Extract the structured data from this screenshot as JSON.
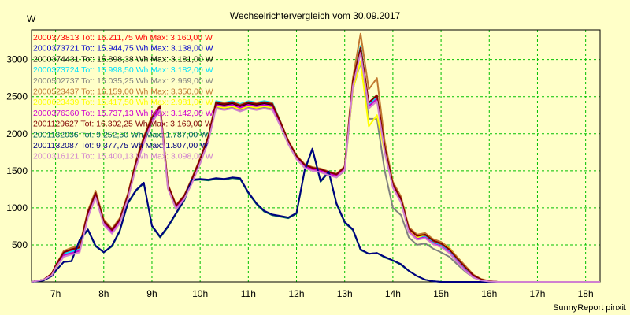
{
  "chart_data": {
    "type": "line",
    "title": "Wechselrichtervergleich vom 30.09.2017",
    "ylabel": "W",
    "footer": "SunnyReport pinxit",
    "ylim": [
      0,
      3400
    ],
    "xlim": [
      6.5,
      18.3
    ],
    "yticks": [
      500,
      1000,
      1500,
      2000,
      2500,
      3000
    ],
    "xticks": [
      7,
      8,
      9,
      10,
      11,
      12,
      13,
      14,
      15,
      16,
      17,
      18
    ],
    "xtick_labels": [
      "7h",
      "8h",
      "9h",
      "10h",
      "11h",
      "12h",
      "13h",
      "14h",
      "15h",
      "16h",
      "17h",
      "18h"
    ],
    "grid": true,
    "legend_position": "top-left",
    "x": [
      6.5,
      6.75,
      6.92,
      7.0,
      7.17,
      7.33,
      7.5,
      7.67,
      7.83,
      8.0,
      8.17,
      8.33,
      8.5,
      8.67,
      8.83,
      9.0,
      9.17,
      9.33,
      9.5,
      9.67,
      9.83,
      10.0,
      10.17,
      10.33,
      10.5,
      10.67,
      10.83,
      11.0,
      11.17,
      11.33,
      11.5,
      11.67,
      11.83,
      12.0,
      12.17,
      12.33,
      12.5,
      12.67,
      12.83,
      13.0,
      13.17,
      13.33,
      13.5,
      13.67,
      13.83,
      14.0,
      14.17,
      14.33,
      14.5,
      14.67,
      14.83,
      15.0,
      15.17,
      15.33,
      15.5,
      15.67,
      15.83,
      16.0,
      16.17,
      16.33,
      16.5,
      16.67,
      16.83,
      17.0,
      17.17,
      17.33,
      17.5,
      17.67,
      17.83,
      18.0,
      18.17,
      18.3
    ],
    "series": [
      {
        "name": "2000373813 Tot: 16.211,75 Wh Max: 3.160,00 W",
        "color": "#ff0000",
        "values": [
          0,
          30,
          100,
          200,
          380,
          420,
          450,
          920,
          1180,
          800,
          680,
          820,
          1150,
          1600,
          1920,
          2200,
          2360,
          1300,
          1020,
          1150,
          1380,
          1650,
          1950,
          2420,
          2400,
          2420,
          2380,
          2420,
          2400,
          2420,
          2400,
          2150,
          1900,
          1700,
          1580,
          1540,
          1520,
          1480,
          1450,
          1550,
          2700,
          3150,
          2400,
          2500,
          1800,
          1300,
          1100,
          700,
          600,
          620,
          540,
          500,
          420,
          300,
          180,
          80,
          30,
          10,
          0,
          0,
          0,
          0,
          0,
          0,
          0,
          0,
          0,
          0,
          0,
          0,
          0,
          0
        ]
      },
      {
        "name": "2000373721 Tot: 15.944,75 Wh Max: 3.138,00 W",
        "color": "#0000cc",
        "values": [
          0,
          30,
          100,
          200,
          380,
          400,
          430,
          900,
          1170,
          790,
          670,
          810,
          1140,
          1580,
          1900,
          2180,
          2340,
          1280,
          1000,
          1140,
          1360,
          1630,
          1930,
          2400,
          2390,
          2400,
          2360,
          2400,
          2390,
          2400,
          2390,
          2140,
          1890,
          1690,
          1570,
          1530,
          1510,
          1470,
          1440,
          1540,
          2680,
          3130,
          2380,
          2480,
          1780,
          1290,
          1090,
          690,
          590,
          610,
          530,
          490,
          410,
          290,
          170,
          70,
          25,
          8,
          0,
          0,
          0,
          0,
          0,
          0,
          0,
          0,
          0,
          0,
          0,
          0,
          0,
          0
        ]
      },
      {
        "name": "2000374431 Tot: 15.898,38 Wh Max: 3.181,00 W",
        "color": "#000000",
        "values": [
          0,
          30,
          100,
          200,
          370,
          400,
          430,
          900,
          1170,
          790,
          670,
          810,
          1140,
          1580,
          1900,
          2180,
          2350,
          1290,
          1010,
          1140,
          1360,
          1640,
          1940,
          2410,
          2390,
          2410,
          2370,
          2410,
          2390,
          2410,
          2390,
          2140,
          1890,
          1690,
          1570,
          1530,
          1510,
          1470,
          1440,
          1540,
          2690,
          3180,
          2390,
          2490,
          1790,
          1290,
          1090,
          690,
          590,
          610,
          530,
          490,
          410,
          290,
          170,
          70,
          25,
          8,
          0,
          0,
          0,
          0,
          0,
          0,
          0,
          0,
          0,
          0,
          0,
          0,
          0,
          0
        ]
      },
      {
        "name": "2000373724 Tot: 15.998,50 Wh Max: 3.182,00 W",
        "color": "#00e0ff",
        "values": [
          0,
          30,
          100,
          210,
          380,
          410,
          440,
          910,
          1180,
          800,
          680,
          820,
          1150,
          1590,
          1910,
          2190,
          2350,
          1290,
          1010,
          1150,
          1370,
          1650,
          1950,
          2440,
          2420,
          2440,
          2400,
          2440,
          2420,
          2440,
          2420,
          2160,
          1900,
          1700,
          1580,
          1540,
          1520,
          1480,
          1450,
          1550,
          2700,
          3180,
          2390,
          2490,
          1790,
          1290,
          1090,
          690,
          590,
          610,
          530,
          490,
          410,
          290,
          170,
          70,
          25,
          8,
          0,
          0,
          0,
          0,
          0,
          0,
          0,
          0,
          0,
          0,
          0,
          0,
          0,
          0
        ]
      },
      {
        "name": "2000502737 Tot: 15.035,25 Wh Max: 2.969,00 W",
        "color": "#808080",
        "values": [
          0,
          30,
          100,
          180,
          350,
          380,
          410,
          880,
          1150,
          780,
          660,
          800,
          1120,
          1560,
          1880,
          2160,
          2330,
          1270,
          990,
          1130,
          1340,
          1600,
          1900,
          2360,
          2340,
          2360,
          2320,
          2360,
          2340,
          2360,
          2340,
          2100,
          1860,
          1660,
          1540,
          1500,
          1480,
          1440,
          1410,
          1500,
          2600,
          2960,
          2200,
          2200,
          1500,
          1000,
          900,
          600,
          500,
          520,
          450,
          400,
          340,
          240,
          140,
          60,
          20,
          5,
          0,
          0,
          0,
          0,
          0,
          0,
          0,
          0,
          0,
          0,
          0,
          0,
          0,
          0
        ]
      },
      {
        "name": "2000523437 Tot: 16.159,00 Wh Max: 3.350,00 W",
        "color": "#c07830",
        "values": [
          0,
          30,
          110,
          220,
          420,
          460,
          490,
          960,
          1230,
          840,
          720,
          860,
          1190,
          1640,
          1960,
          2240,
          2380,
          1320,
          1040,
          1170,
          1400,
          1670,
          1970,
          2430,
          2410,
          2430,
          2390,
          2430,
          2410,
          2430,
          2410,
          2160,
          1910,
          1710,
          1590,
          1550,
          1530,
          1490,
          1460,
          1560,
          2750,
          3350,
          2600,
          2750,
          1900,
          1350,
          1150,
          740,
          640,
          660,
          580,
          540,
          460,
          340,
          220,
          100,
          40,
          12,
          0,
          0,
          0,
          0,
          0,
          0,
          0,
          0,
          0,
          0,
          0,
          0,
          0,
          0
        ]
      },
      {
        "name": "2000623439 Tot: 15.417,50 Wh Max: 2.981,00 W",
        "color": "#ffff00",
        "values": [
          0,
          30,
          90,
          180,
          350,
          380,
          410,
          880,
          1150,
          780,
          660,
          800,
          1120,
          1560,
          1880,
          2160,
          2320,
          1260,
          980,
          1120,
          1340,
          1610,
          1910,
          2370,
          2350,
          2370,
          2330,
          2370,
          2350,
          2370,
          2350,
          2110,
          1870,
          1670,
          1550,
          1510,
          1490,
          1450,
          1420,
          1520,
          2600,
          2980,
          2100,
          2250,
          1750,
          1300,
          1100,
          700,
          600,
          640,
          560,
          520,
          450,
          320,
          200,
          90,
          35,
          10,
          0,
          0,
          0,
          0,
          0,
          0,
          0,
          0,
          0,
          0,
          0,
          0,
          0,
          0
        ]
      },
      {
        "name": "2000376360 Tot: 15.737,13 Wh Max: 3.142,00 W",
        "color": "#d000d0",
        "values": [
          0,
          30,
          100,
          200,
          360,
          390,
          420,
          890,
          1160,
          790,
          670,
          810,
          1140,
          1570,
          1890,
          2170,
          2340,
          1280,
          1000,
          1140,
          1360,
          1630,
          1930,
          2390,
          2370,
          2390,
          2350,
          2390,
          2370,
          2390,
          2370,
          2130,
          1880,
          1680,
          1560,
          1520,
          1500,
          1460,
          1430,
          1530,
          2670,
          3140,
          2370,
          2470,
          1770,
          1280,
          1080,
          680,
          580,
          600,
          520,
          480,
          400,
          280,
          160,
          65,
          22,
          6,
          0,
          0,
          0,
          0,
          0,
          0,
          0,
          0,
          0,
          0,
          0,
          0,
          0,
          0
        ]
      },
      {
        "name": "2001129627 Tot: 16.302,25 Wh Max: 3.169,00 W",
        "color": "#800000",
        "values": [
          0,
          30,
          110,
          220,
          400,
          440,
          470,
          940,
          1200,
          820,
          700,
          840,
          1170,
          1620,
          1940,
          2220,
          2370,
          1310,
          1030,
          1160,
          1390,
          1660,
          1960,
          2420,
          2400,
          2420,
          2380,
          2420,
          2400,
          2420,
          2400,
          2150,
          1900,
          1700,
          1580,
          1540,
          1520,
          1480,
          1450,
          1550,
          2710,
          3160,
          2420,
          2520,
          1820,
          1320,
          1120,
          720,
          620,
          640,
          560,
          520,
          440,
          320,
          200,
          90,
          35,
          10,
          0,
          0,
          0,
          0,
          0,
          0,
          0,
          0,
          0,
          0,
          0,
          0,
          0,
          0
        ]
      },
      {
        "name": "2001132036 Tot: 9.252,50 Wh Max: 1.787,00 W",
        "color": "#006060",
        "values": [
          0,
          20,
          80,
          150,
          270,
          280,
          560,
          700,
          480,
          400,
          480,
          680,
          1060,
          1230,
          1330,
          750,
          600,
          740,
          920,
          1100,
          1370,
          1380,
          1370,
          1390,
          1380,
          1400,
          1390,
          1200,
          1050,
          950,
          900,
          880,
          860,
          920,
          1500,
          1790,
          1350,
          1480,
          1050,
          800,
          700,
          430,
          380,
          390,
          330,
          290,
          230,
          150,
          80,
          30,
          10,
          0,
          0,
          0,
          0,
          0,
          0,
          0,
          0,
          0,
          0,
          0,
          0,
          0,
          0,
          0,
          0,
          0,
          0,
          0,
          0,
          0
        ]
      },
      {
        "name": "2001132087 Tot: 9.377,75 Wh Max: 1.807,00 W",
        "color": "#000080",
        "values": [
          0,
          20,
          80,
          150,
          270,
          280,
          570,
          710,
          490,
          400,
          490,
          690,
          1070,
          1240,
          1340,
          760,
          610,
          750,
          930,
          1110,
          1380,
          1390,
          1380,
          1400,
          1390,
          1410,
          1400,
          1210,
          1060,
          960,
          910,
          890,
          870,
          930,
          1510,
          1800,
          1360,
          1490,
          1060,
          810,
          710,
          440,
          380,
          390,
          340,
          290,
          240,
          150,
          80,
          30,
          10,
          0,
          0,
          0,
          0,
          0,
          0,
          0,
          0,
          0,
          0,
          0,
          0,
          0,
          0,
          0,
          0,
          0,
          0,
          0,
          0,
          0
        ]
      },
      {
        "name": "2000316121 Tot: 15.400,13 Wh Max: 3.098,00 W",
        "color": "#d080d0",
        "values": [
          0,
          30,
          90,
          190,
          340,
          370,
          400,
          870,
          1140,
          770,
          650,
          790,
          1120,
          1550,
          1870,
          2150,
          2320,
          1260,
          980,
          1120,
          1330,
          1600,
          1900,
          2340,
          2320,
          2340,
          2300,
          2340,
          2320,
          2340,
          2320,
          2100,
          1860,
          1660,
          1540,
          1500,
          1480,
          1440,
          1410,
          1510,
          2640,
          3090,
          2340,
          2440,
          1750,
          1270,
          1070,
          670,
          570,
          590,
          510,
          470,
          390,
          270,
          150,
          60,
          20,
          5,
          0,
          0,
          0,
          0,
          0,
          0,
          0,
          0,
          0,
          0,
          0,
          0,
          0,
          0
        ]
      }
    ]
  }
}
